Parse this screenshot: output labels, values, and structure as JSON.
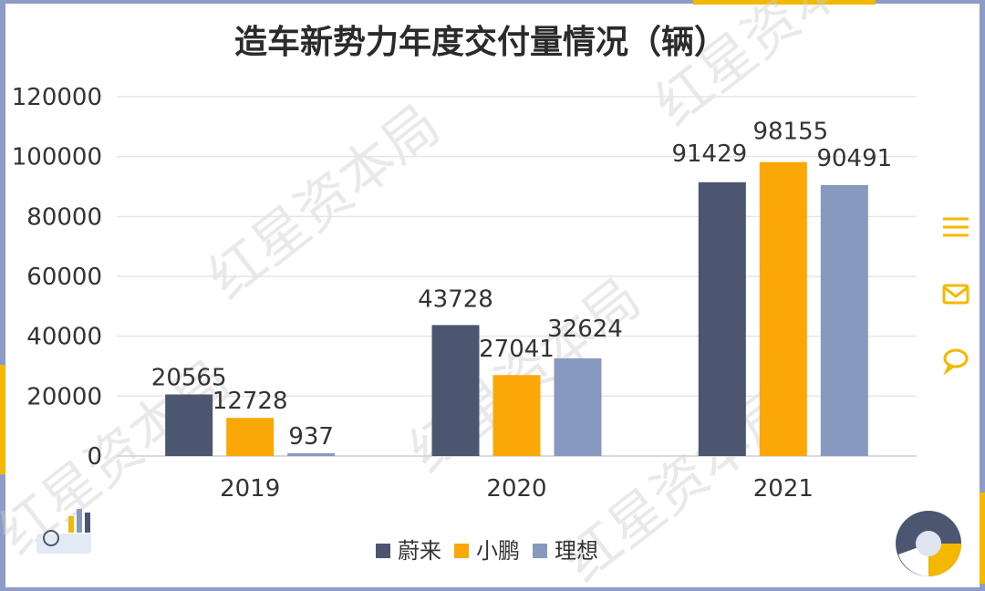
{
  "chart_data": {
    "type": "bar",
    "title": "造车新势力年度交付量情况（辆）",
    "categories": [
      "2019",
      "2020",
      "2021"
    ],
    "series": [
      {
        "name": "蔚来",
        "values": [
          20565,
          43728,
          91429
        ],
        "color": "#4d5670"
      },
      {
        "name": "小鹏",
        "values": [
          12728,
          27041,
          98155
        ],
        "color": "#fba707"
      },
      {
        "name": "理想",
        "values": [
          937,
          32624,
          90491
        ],
        "color": "#8899c0"
      }
    ],
    "y_ticks": [
      "0",
      "20000",
      "40000",
      "60000",
      "80000",
      "100000",
      "120000"
    ],
    "ylim": [
      0,
      120000
    ],
    "grid": true,
    "legend_position": "bottom-center"
  },
  "watermark": "红星资本局",
  "icons": {
    "menu": "menu-icon",
    "mail": "mail-icon",
    "comment": "comment-icon"
  },
  "colors": {
    "frame": "#8d9bc6",
    "accent": "#f5b800",
    "grid": "#e6e6e6",
    "text": "#333333"
  }
}
